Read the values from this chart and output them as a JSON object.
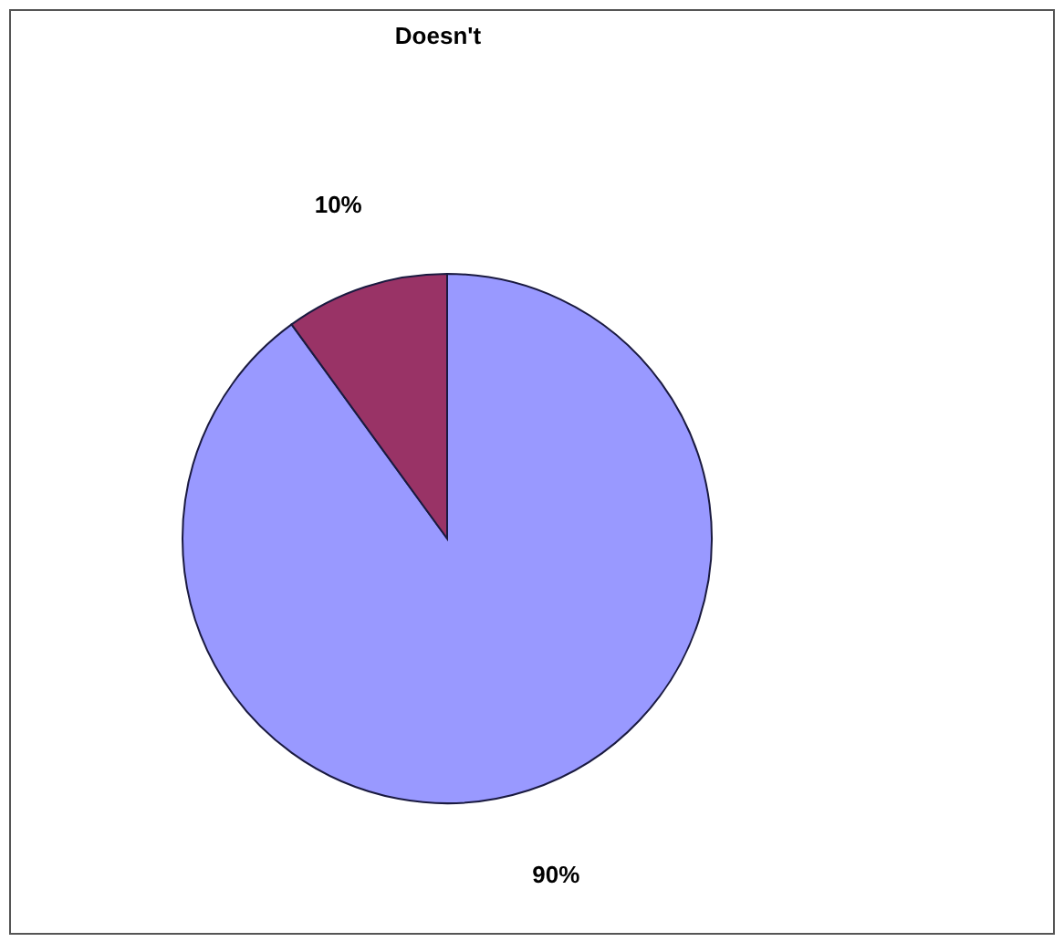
{
  "chart_data": {
    "type": "pie",
    "title": "Doesn't",
    "categories": [
      null,
      null
    ],
    "values": [
      90,
      10
    ],
    "colors": [
      "#9999ff",
      "#993366"
    ],
    "value_labels": [
      "90%",
      "10%"
    ],
    "legend": false
  }
}
